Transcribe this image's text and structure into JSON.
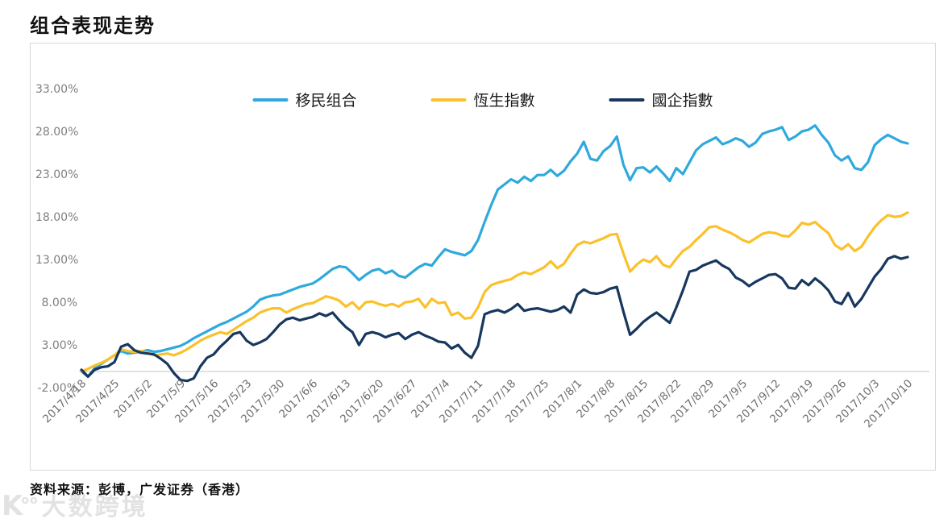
{
  "page": {
    "title": "组合表现走势",
    "source": "资料来源：彭博，广发证券（香港）"
  },
  "watermark": {
    "logo": "K",
    "logo_sup": "oo",
    "text": "大数跨境"
  },
  "chart_data": {
    "type": "line",
    "title": "组合表现走势",
    "xlabel": "",
    "ylabel": "",
    "grid": false,
    "legend_position": "top-center",
    "ylim": [
      -3,
      34
    ],
    "y_ticks": [
      {
        "label": "33.00%",
        "value": 33
      },
      {
        "label": "28.00%",
        "value": 28
      },
      {
        "label": "23.00%",
        "value": 23
      },
      {
        "label": "18.00%",
        "value": 18
      },
      {
        "label": "13.00%",
        "value": 13
      },
      {
        "label": "8.00%",
        "value": 8
      },
      {
        "label": "3.00%",
        "value": 3
      },
      {
        "label": "-2.00%",
        "value": -2
      }
    ],
    "x_tick_labels": [
      "2017/4/18",
      "2017/4/25",
      "2017/5/2",
      "2017/5/9",
      "2017/5/16",
      "2017/5/23",
      "2017/5/30",
      "2017/6/6",
      "2017/6/13",
      "2017/6/20",
      "2017/6/27",
      "2017/7/4",
      "2017/7/11",
      "2017/7/18",
      "2017/7/25",
      "2017/8/1",
      "2017/8/8",
      "2017/8/15",
      "2017/8/22",
      "2017/8/29",
      "2017/9/5",
      "2017/9/12",
      "2017/9/19",
      "2017/9/26",
      "2017/10/3",
      "2017/10/10"
    ],
    "points_per_tick": 5,
    "unit": "percent",
    "series": [
      {
        "id": "immigration-portfolio",
        "label": "移民组合",
        "color": "#2FA9DD",
        "values": [
          0.0,
          -0.6,
          0.4,
          0.9,
          1.4,
          1.9,
          2.4,
          2.1,
          2.2,
          2.3,
          2.5,
          2.3,
          2.4,
          2.6,
          2.8,
          3.0,
          3.4,
          3.9,
          4.3,
          4.7,
          5.1,
          5.5,
          5.8,
          6.2,
          6.6,
          7.0,
          7.6,
          8.4,
          8.7,
          8.9,
          9.0,
          9.3,
          9.6,
          9.9,
          10.1,
          10.3,
          10.8,
          11.4,
          12.0,
          12.3,
          12.2,
          11.5,
          10.7,
          11.3,
          11.8,
          12.0,
          11.5,
          11.8,
          11.2,
          11.0,
          11.6,
          12.2,
          12.6,
          12.4,
          13.4,
          14.3,
          14.0,
          13.8,
          13.6,
          14.1,
          15.4,
          17.5,
          19.5,
          21.3,
          21.9,
          22.5,
          22.1,
          22.8,
          22.3,
          23.0,
          23.0,
          23.6,
          22.9,
          23.5,
          24.6,
          25.5,
          26.9,
          24.9,
          24.7,
          25.8,
          26.4,
          27.5,
          24.2,
          22.4,
          23.8,
          23.9,
          23.3,
          24.0,
          23.2,
          22.3,
          23.8,
          23.1,
          24.5,
          25.9,
          26.6,
          27.0,
          27.4,
          26.6,
          26.9,
          27.3,
          27.0,
          26.3,
          26.8,
          27.8,
          28.1,
          28.3,
          28.6,
          27.1,
          27.5,
          28.1,
          28.3,
          28.8,
          27.7,
          26.8,
          25.3,
          24.7,
          25.2,
          23.8,
          23.6,
          24.5,
          26.5,
          27.2,
          27.7,
          27.3,
          26.9,
          26.7
        ]
      },
      {
        "id": "hang-seng-index",
        "label": "恆生指數",
        "color": "#FBC12B",
        "values": [
          0.0,
          0.3,
          0.7,
          1.0,
          1.4,
          1.9,
          2.6,
          2.4,
          2.3,
          2.4,
          2.2,
          1.9,
          2.0,
          2.1,
          1.9,
          2.2,
          2.6,
          3.1,
          3.6,
          4.0,
          4.3,
          4.6,
          4.4,
          4.9,
          5.4,
          5.9,
          6.3,
          6.9,
          7.2,
          7.4,
          7.4,
          6.9,
          7.3,
          7.6,
          7.9,
          8.0,
          8.4,
          8.8,
          8.6,
          8.3,
          7.6,
          8.1,
          7.3,
          8.1,
          8.2,
          7.9,
          7.7,
          7.9,
          7.6,
          8.1,
          8.2,
          8.5,
          7.5,
          8.5,
          8.0,
          8.1,
          6.6,
          6.9,
          6.2,
          6.3,
          7.5,
          9.3,
          10.1,
          10.4,
          10.6,
          10.8,
          11.3,
          11.6,
          11.4,
          11.8,
          12.2,
          12.9,
          12.1,
          12.6,
          13.8,
          14.8,
          15.2,
          15.0,
          15.3,
          15.6,
          16.0,
          16.1,
          13.8,
          11.7,
          12.5,
          13.1,
          12.8,
          13.5,
          12.5,
          12.2,
          13.2,
          14.1,
          14.6,
          15.4,
          16.1,
          16.9,
          17.0,
          16.6,
          16.3,
          15.9,
          15.4,
          15.1,
          15.6,
          16.1,
          16.3,
          16.2,
          15.9,
          15.8,
          16.5,
          17.4,
          17.2,
          17.5,
          16.8,
          16.2,
          14.8,
          14.3,
          14.9,
          14.1,
          14.6,
          15.8,
          16.9,
          17.7,
          18.3,
          18.1,
          18.2,
          18.6
        ]
      },
      {
        "id": "china-enterprises-index",
        "label": "國企指數",
        "color": "#17375E",
        "values": [
          0.2,
          -0.6,
          0.2,
          0.5,
          0.6,
          1.1,
          2.9,
          3.2,
          2.5,
          2.2,
          2.1,
          2.0,
          1.5,
          0.9,
          -0.2,
          -1.0,
          -1.1,
          -0.8,
          0.6,
          1.6,
          2.0,
          2.9,
          3.6,
          4.4,
          4.6,
          3.6,
          3.1,
          3.4,
          3.8,
          4.6,
          5.5,
          6.1,
          6.3,
          6.0,
          6.2,
          6.4,
          6.8,
          6.5,
          6.9,
          6.0,
          5.2,
          4.6,
          3.1,
          4.4,
          4.6,
          4.4,
          4.0,
          4.3,
          4.5,
          3.8,
          4.3,
          4.6,
          4.2,
          3.9,
          3.5,
          3.4,
          2.7,
          3.1,
          2.2,
          1.6,
          3.0,
          6.7,
          7.0,
          7.2,
          6.9,
          7.3,
          7.9,
          7.1,
          7.3,
          7.4,
          7.2,
          7.0,
          7.2,
          7.6,
          6.9,
          9.0,
          9.6,
          9.2,
          9.1,
          9.3,
          9.7,
          9.9,
          7.0,
          4.3,
          5.0,
          5.8,
          6.4,
          6.9,
          6.3,
          5.7,
          7.5,
          9.5,
          11.7,
          11.9,
          12.4,
          12.7,
          13.0,
          12.4,
          12.0,
          11.0,
          10.6,
          10.0,
          10.5,
          10.9,
          11.3,
          11.4,
          10.9,
          9.8,
          9.7,
          10.7,
          10.1,
          10.9,
          10.3,
          9.5,
          8.2,
          7.9,
          9.2,
          7.6,
          8.5,
          9.8,
          11.1,
          12.0,
          13.2,
          13.5,
          13.2,
          13.4
        ]
      }
    ]
  }
}
